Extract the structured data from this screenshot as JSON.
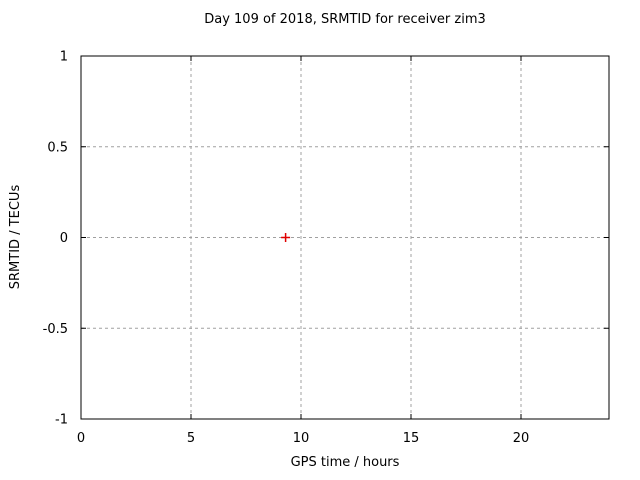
{
  "chart_data": {
    "type": "scatter",
    "title": "Day 109 of 2018, SRMTID for receiver zim3",
    "xlabel": "GPS time / hours",
    "ylabel": "SRMTID / TECUs",
    "xlim": [
      0,
      24
    ],
    "ylim": [
      -1,
      1
    ],
    "xticks": {
      "values": [
        0,
        5,
        10,
        15,
        20
      ],
      "labels": [
        "0",
        "5",
        "10",
        "15",
        "20"
      ]
    },
    "yticks": {
      "values": [
        1,
        0.5,
        0,
        -0.5,
        -1
      ],
      "labels": [
        "1",
        "0.5",
        "0",
        "-0.5",
        "-1"
      ]
    },
    "grid": true,
    "grid_style": "dashed",
    "legend": "none",
    "series": [
      {
        "name": "SRMTID",
        "marker": "plus",
        "marker_size": 9,
        "color": "#e00000",
        "points": [
          {
            "x": 9.3,
            "y": 0.0
          }
        ]
      }
    ],
    "colors": {
      "background": "#ffffff",
      "border": "#000000",
      "grid": "#a0a0a0",
      "text": "#000000"
    }
  }
}
